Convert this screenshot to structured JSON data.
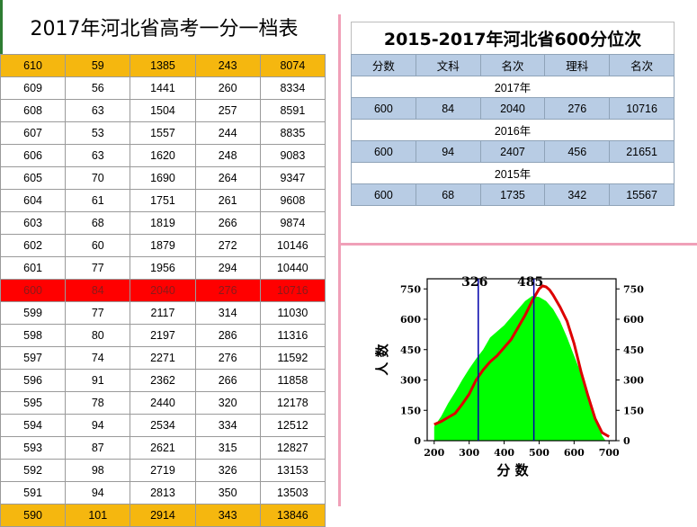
{
  "left": {
    "title": "2017年河北省高考一分一档表",
    "rows": [
      [
        "610",
        "59",
        "1385",
        "243",
        "8074"
      ],
      [
        "609",
        "56",
        "1441",
        "260",
        "8334"
      ],
      [
        "608",
        "63",
        "1504",
        "257",
        "8591"
      ],
      [
        "607",
        "53",
        "1557",
        "244",
        "8835"
      ],
      [
        "606",
        "63",
        "1620",
        "248",
        "9083"
      ],
      [
        "605",
        "70",
        "1690",
        "264",
        "9347"
      ],
      [
        "604",
        "61",
        "1751",
        "261",
        "9608"
      ],
      [
        "603",
        "68",
        "1819",
        "266",
        "9874"
      ],
      [
        "602",
        "60",
        "1879",
        "272",
        "10146"
      ],
      [
        "601",
        "77",
        "1956",
        "294",
        "10440"
      ],
      [
        "600",
        "84",
        "2040",
        "276",
        "10716"
      ],
      [
        "599",
        "77",
        "2117",
        "314",
        "11030"
      ],
      [
        "598",
        "80",
        "2197",
        "286",
        "11316"
      ],
      [
        "597",
        "74",
        "2271",
        "276",
        "11592"
      ],
      [
        "596",
        "91",
        "2362",
        "266",
        "11858"
      ],
      [
        "595",
        "78",
        "2440",
        "320",
        "12178"
      ],
      [
        "594",
        "94",
        "2534",
        "334",
        "12512"
      ],
      [
        "593",
        "87",
        "2621",
        "315",
        "12827"
      ],
      [
        "592",
        "98",
        "2719",
        "326",
        "13153"
      ],
      [
        "591",
        "94",
        "2813",
        "350",
        "13503"
      ],
      [
        "590",
        "101",
        "2914",
        "343",
        "13846"
      ]
    ]
  },
  "right": {
    "title": "2015-2017年河北省600分位次",
    "headers": [
      "分数",
      "文科",
      "名次",
      "理科",
      "名次"
    ],
    "years": [
      {
        "year": "2017年",
        "row": [
          "600",
          "84",
          "2040",
          "276",
          "10716"
        ]
      },
      {
        "year": "2016年",
        "row": [
          "600",
          "94",
          "2407",
          "456",
          "21651"
        ]
      },
      {
        "year": "2015年",
        "row": [
          "600",
          "68",
          "1735",
          "342",
          "15567"
        ]
      }
    ]
  },
  "chart_data": {
    "type": "area",
    "xlabel": "分 数",
    "ylabel": "人 数",
    "xlim": [
      180,
      720
    ],
    "ylim": [
      0,
      800
    ],
    "xticks": [
      200,
      300,
      400,
      500,
      600,
      700
    ],
    "yticks": [
      0,
      150,
      300,
      450,
      600,
      750
    ],
    "annotations": [
      {
        "label": "326",
        "x": 326
      },
      {
        "label": "485",
        "x": 485
      }
    ],
    "series": [
      {
        "color": "#00ff00",
        "x": [
          200,
          220,
          240,
          260,
          280,
          300,
          320,
          340,
          360,
          380,
          400,
          420,
          440,
          460,
          480,
          500,
          520,
          540,
          560,
          580,
          600,
          620,
          640,
          660,
          680,
          690
        ],
        "y": [
          70,
          120,
          185,
          240,
          300,
          355,
          405,
          450,
          510,
          540,
          570,
          610,
          650,
          690,
          715,
          710,
          690,
          650,
          590,
          510,
          420,
          330,
          200,
          100,
          25,
          0
        ]
      },
      {
        "color": "#dd0000",
        "x": [
          200,
          220,
          240,
          260,
          280,
          300,
          320,
          340,
          360,
          380,
          400,
          420,
          440,
          460,
          480,
          500,
          510,
          520,
          530,
          540,
          560,
          580,
          600,
          620,
          640,
          660,
          680,
          700
        ],
        "y": [
          80,
          95,
          115,
          135,
          180,
          230,
          300,
          350,
          390,
          420,
          460,
          500,
          560,
          620,
          690,
          750,
          765,
          760,
          745,
          720,
          660,
          590,
          480,
          340,
          220,
          110,
          40,
          20
        ]
      }
    ]
  }
}
